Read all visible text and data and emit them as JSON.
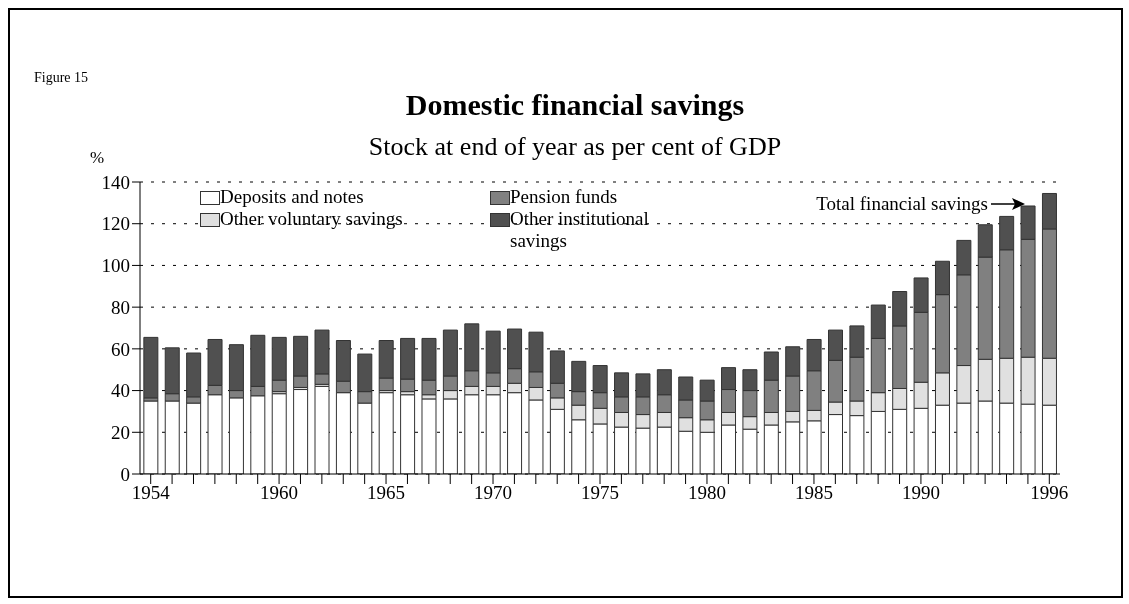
{
  "chart_data": {
    "type": "bar",
    "title": "Domestic financial savings",
    "subtitle": "Stock at end of year as per cent of GDP",
    "ylabel": "%",
    "annotations": [
      "Figure 15",
      "Total financial savings"
    ],
    "categories": [
      "1954",
      null,
      null,
      null,
      null,
      null,
      "1960",
      null,
      null,
      null,
      null,
      "1965",
      null,
      null,
      null,
      null,
      "1970",
      null,
      null,
      null,
      null,
      "1975",
      null,
      null,
      null,
      null,
      "1980",
      null,
      null,
      null,
      null,
      "1985",
      null,
      null,
      null,
      null,
      "1990",
      null,
      null,
      null,
      null,
      null,
      "1996"
    ],
    "stacked": true,
    "series": [
      {
        "name": "Deposits and notes",
        "color": "#ffffff",
        "values": [
          35,
          35,
          34,
          38,
          36.5,
          37.5,
          38.5,
          40.5,
          42,
          39,
          34,
          39,
          38,
          36,
          36,
          38,
          38,
          39,
          35.5,
          31,
          26,
          24,
          22.5,
          22,
          22.5,
          20.5,
          20,
          23.5,
          21.5,
          23.5,
          25,
          25.5,
          28.5,
          28,
          30,
          31,
          31.5,
          33,
          34,
          35,
          34,
          33.5,
          33
        ]
      },
      {
        "name": "Other voluntary savings",
        "color": "#e0e0e0",
        "values": [
          null,
          null,
          null,
          null,
          null,
          null,
          1,
          1,
          1,
          null,
          null,
          1,
          1.5,
          2,
          4,
          4,
          4,
          4.5,
          6,
          5.5,
          7,
          7.5,
          7,
          6.5,
          7,
          6.5,
          6,
          6,
          6,
          6,
          5,
          5,
          6,
          7,
          9,
          10,
          12.5,
          15.5,
          18,
          20,
          21.5,
          22.5,
          22.5
        ]
      },
      {
        "name": "Pension funds",
        "color": "#808080",
        "values": [
          1.5,
          3.5,
          3,
          4.5,
          3.5,
          4.5,
          5.5,
          5.5,
          5,
          5.5,
          5.5,
          6,
          6,
          7,
          7,
          7.5,
          6.5,
          7,
          7.5,
          7,
          6.5,
          7.5,
          7.5,
          8.5,
          8.5,
          8.5,
          9,
          11,
          12.5,
          15.5,
          17,
          19,
          20,
          21,
          26,
          30,
          33.5,
          37.5,
          43.5,
          49,
          52,
          56.5,
          62
        ]
      },
      {
        "name": "Other institutional savings",
        "color": "#505050",
        "values": [
          29,
          22,
          21,
          22,
          22,
          24.5,
          20.5,
          19,
          21,
          19.5,
          18,
          18,
          19.5,
          20,
          22,
          22.5,
          20,
          19,
          19,
          15.5,
          14.5,
          13,
          11.5,
          11,
          12,
          11,
          10,
          10.5,
          10,
          13.5,
          14,
          15,
          14.5,
          15,
          16,
          16.5,
          16.5,
          16,
          16.5,
          15.5,
          16,
          16,
          17
        ]
      }
    ],
    "ylim": [
      0,
      140
    ],
    "yticks": [
      0,
      20,
      40,
      60,
      80,
      100,
      120,
      140
    ],
    "grid": "y",
    "legend": "top left"
  }
}
